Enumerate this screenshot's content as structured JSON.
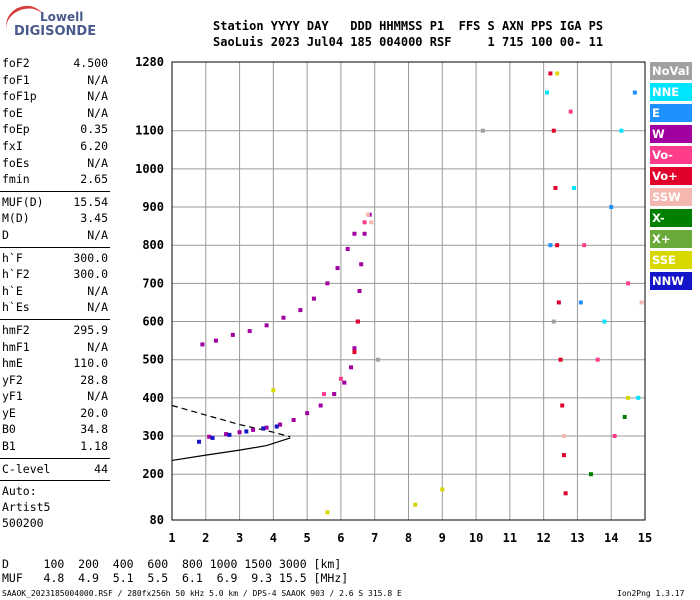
{
  "logo": {
    "line1": "Lowell",
    "line2": "DIGISONDE"
  },
  "header": {
    "row1": "Station YYYY DAY   DDD HHMMSS P1  FFS S AXN PPS IGA PS",
    "row2": "SaoLuis 2023 Jul04 185 004000 RSF     1 715 100 00- 11"
  },
  "params": {
    "group1": [
      {
        "k": "foF2",
        "v": "4.500"
      },
      {
        "k": "foF1",
        "v": "N/A"
      },
      {
        "k": "foF1p",
        "v": "N/A"
      },
      {
        "k": "foE",
        "v": "N/A"
      },
      {
        "k": "foEp",
        "v": "0.35"
      },
      {
        "k": "fxI",
        "v": "6.20"
      },
      {
        "k": "foEs",
        "v": "N/A"
      },
      {
        "k": "fmin",
        "v": "2.65"
      }
    ],
    "group2": [
      {
        "k": "MUF(D)",
        "v": "15.54"
      },
      {
        "k": "M(D)",
        "v": "3.45"
      },
      {
        "k": "D",
        "v": "N/A"
      }
    ],
    "group3": [
      {
        "k": "h`F",
        "v": "300.0"
      },
      {
        "k": "h`F2",
        "v": "300.0"
      },
      {
        "k": "h`E",
        "v": "N/A"
      },
      {
        "k": "h`Es",
        "v": "N/A"
      }
    ],
    "group4": [
      {
        "k": "hmF2",
        "v": "295.9"
      },
      {
        "k": "hmF1",
        "v": "N/A"
      },
      {
        "k": "hmE",
        "v": "110.0"
      },
      {
        "k": "yF2",
        "v": "28.8"
      },
      {
        "k": "yF1",
        "v": "N/A"
      },
      {
        "k": "yE",
        "v": "20.0"
      },
      {
        "k": "B0",
        "v": "34.8"
      },
      {
        "k": "B1",
        "v": "1.18"
      }
    ],
    "group5": [
      {
        "k": "C-level",
        "v": "44"
      }
    ],
    "auto": [
      "Auto:",
      "Artist5",
      "500200"
    ]
  },
  "legend": [
    {
      "label": "NoVal",
      "color": "#a0a0a0"
    },
    {
      "label": "NNE",
      "color": "#00e5ff"
    },
    {
      "label": "E",
      "color": "#1e90ff"
    },
    {
      "label": "W",
      "color": "#a000a0"
    },
    {
      "label": "Vo-",
      "color": "#ff3c8c"
    },
    {
      "label": "Vo+",
      "color": "#e0002a"
    },
    {
      "label": "SSW",
      "color": "#f5b8b0"
    },
    {
      "label": "X-",
      "color": "#008000"
    },
    {
      "label": "X+",
      "color": "#6aaa3a"
    },
    {
      "label": "SSE",
      "color": "#d8d800"
    },
    {
      "label": "NNW",
      "color": "#1414c8"
    }
  ],
  "footer": {
    "row1": "D     100  200  400  600  800 1000 1500 3000 [km]",
    "row2": "MUF   4.8  4.9  5.1  5.5  6.1  6.9  9.3 15.5 [MHz]",
    "file": "SAAOK_2023185004000.RSF / 280fx256h 50 kHz 5.0 km / DPS-4 SAAOK 903 / 2.6 S 315.8 E",
    "version": "Ion2Png 1.3.17"
  },
  "chart_data": {
    "type": "scatter",
    "xlabel": "",
    "ylabel": "",
    "xlim": [
      1,
      15
    ],
    "ylim": [
      80,
      1280
    ],
    "x_ticks": [
      1,
      2,
      3,
      4,
      5,
      6,
      7,
      8,
      9,
      10,
      11,
      12,
      13,
      14,
      15
    ],
    "y_ticks": [
      80,
      200,
      300,
      400,
      500,
      600,
      700,
      800,
      900,
      1000,
      1100,
      1280
    ],
    "grid": true,
    "series": [
      {
        "name": "W",
        "color": "#a000a0",
        "points": [
          [
            2.1,
            298
          ],
          [
            2.6,
            305
          ],
          [
            3.0,
            310
          ],
          [
            3.4,
            316
          ],
          [
            3.8,
            322
          ],
          [
            4.2,
            330
          ],
          [
            4.6,
            342
          ],
          [
            5.0,
            360
          ],
          [
            5.4,
            380
          ],
          [
            5.8,
            410
          ],
          [
            6.1,
            440
          ],
          [
            6.3,
            480
          ],
          [
            6.4,
            530
          ],
          [
            6.5,
            600
          ],
          [
            6.55,
            680
          ],
          [
            6.6,
            750
          ],
          [
            6.7,
            830
          ],
          [
            6.85,
            880
          ],
          [
            1.9,
            540
          ],
          [
            2.3,
            550
          ],
          [
            2.8,
            565
          ],
          [
            3.3,
            575
          ],
          [
            3.8,
            590
          ],
          [
            4.3,
            610
          ],
          [
            4.8,
            630
          ],
          [
            5.2,
            660
          ],
          [
            5.6,
            700
          ],
          [
            5.9,
            740
          ],
          [
            6.2,
            790
          ],
          [
            6.4,
            830
          ]
        ]
      },
      {
        "name": "NNW",
        "color": "#1414c8",
        "points": [
          [
            1.8,
            285
          ],
          [
            2.2,
            295
          ],
          [
            2.7,
            303
          ],
          [
            3.2,
            312
          ],
          [
            3.7,
            320
          ],
          [
            4.1,
            325
          ]
        ]
      },
      {
        "name": "Vo+",
        "color": "#e0002a",
        "points": [
          [
            12.2,
            1250
          ],
          [
            12.3,
            1100
          ],
          [
            12.35,
            950
          ],
          [
            12.4,
            800
          ],
          [
            12.45,
            650
          ],
          [
            12.5,
            500
          ],
          [
            12.55,
            380
          ],
          [
            12.6,
            250
          ],
          [
            12.65,
            150
          ],
          [
            6.4,
            520
          ],
          [
            6.5,
            600
          ]
        ]
      },
      {
        "name": "Vo-",
        "color": "#ff3c8c",
        "points": [
          [
            12.8,
            1150
          ],
          [
            13.2,
            800
          ],
          [
            13.6,
            500
          ],
          [
            14.1,
            300
          ],
          [
            14.5,
            700
          ],
          [
            5.5,
            410
          ],
          [
            6.0,
            450
          ],
          [
            6.7,
            860
          ]
        ]
      },
      {
        "name": "NNE",
        "color": "#00e5ff",
        "points": [
          [
            12.1,
            1200
          ],
          [
            12.9,
            950
          ],
          [
            13.8,
            600
          ],
          [
            14.3,
            1100
          ],
          [
            14.8,
            400
          ]
        ]
      },
      {
        "name": "E",
        "color": "#1e90ff",
        "points": [
          [
            12.2,
            800
          ],
          [
            13.1,
            650
          ],
          [
            14.0,
            900
          ],
          [
            14.7,
            1200
          ]
        ]
      },
      {
        "name": "SSW",
        "color": "#f5b8b0",
        "points": [
          [
            6.8,
            880
          ],
          [
            6.9,
            860
          ],
          [
            12.6,
            300
          ],
          [
            14.9,
            650
          ]
        ]
      },
      {
        "name": "SSE",
        "color": "#d8d800",
        "points": [
          [
            4.0,
            420
          ],
          [
            5.6,
            100
          ],
          [
            8.2,
            120
          ],
          [
            9.0,
            160
          ],
          [
            12.4,
            1250
          ],
          [
            14.5,
            400
          ]
        ]
      },
      {
        "name": "X-",
        "color": "#008000",
        "points": [
          [
            13.4,
            200
          ],
          [
            14.4,
            350
          ]
        ]
      },
      {
        "name": "NoVal",
        "color": "#a0a0a0",
        "points": [
          [
            7.1,
            500
          ],
          [
            10.2,
            1100
          ],
          [
            12.3,
            600
          ]
        ]
      }
    ],
    "profile_curve": [
      [
        1,
        236
      ],
      [
        2,
        250
      ],
      [
        3,
        263
      ],
      [
        3.8,
        275
      ],
      [
        4.5,
        295
      ]
    ],
    "profile_dashed": [
      [
        1,
        380
      ],
      [
        2,
        355
      ],
      [
        3,
        330
      ],
      [
        4,
        310
      ],
      [
        4.5,
        298
      ]
    ]
  }
}
